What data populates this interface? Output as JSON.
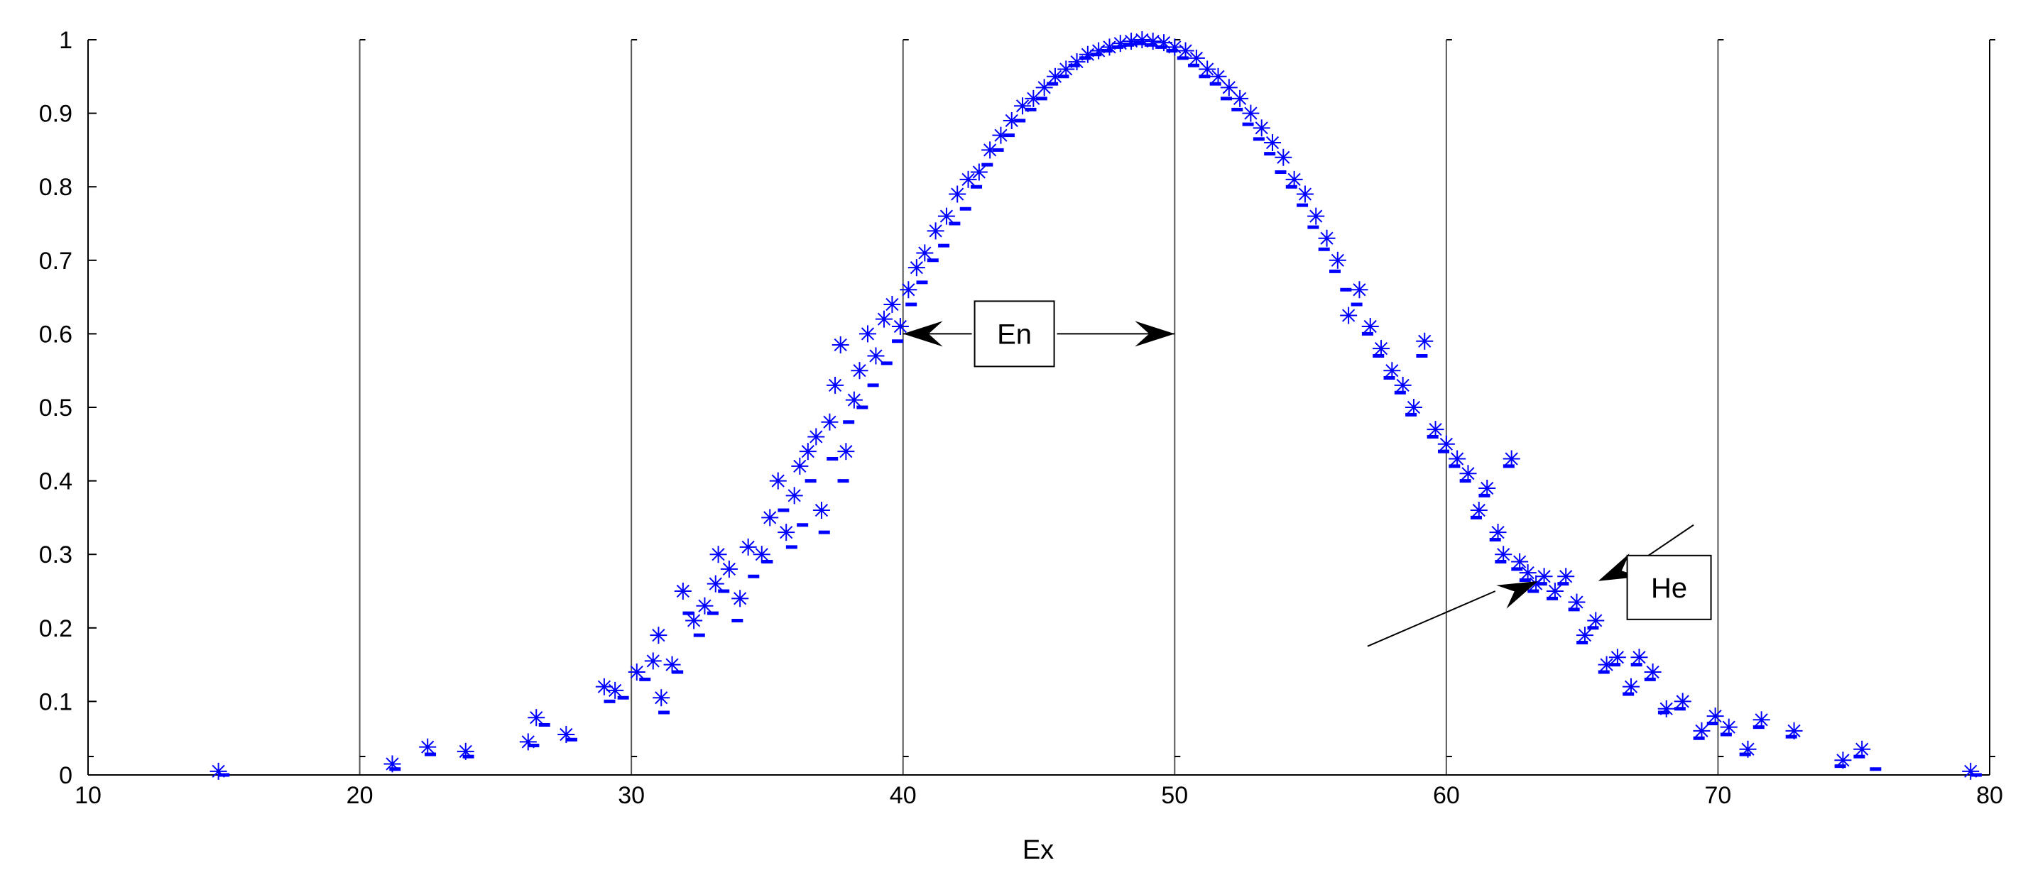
{
  "chart_data": {
    "type": "scatter",
    "title": "",
    "xlabel": "Ex",
    "ylabel": "",
    "xlim": [
      10,
      80
    ],
    "ylim": [
      0,
      1
    ],
    "x_ticks": [
      "10",
      "20",
      "30",
      "40",
      "50",
      "60",
      "70",
      "80"
    ],
    "y_ticks": [
      "0",
      "0.1",
      "0.2",
      "0.3",
      "0.4",
      "0.5",
      "0.6",
      "0.7",
      "0.8",
      "0.9",
      "1"
    ],
    "x_grid": true,
    "y_grid": false,
    "legend": "none",
    "marker_color": "#0000ff",
    "series": [
      {
        "marker": "asterisk",
        "points": [
          [
            14.8,
            0.005
          ],
          [
            21.2,
            0.015
          ],
          [
            22.5,
            0.038
          ],
          [
            23.9,
            0.032
          ],
          [
            26.2,
            0.045
          ],
          [
            26.5,
            0.078
          ],
          [
            27.6,
            0.055
          ],
          [
            29.0,
            0.12
          ],
          [
            29.4,
            0.115
          ],
          [
            30.2,
            0.14
          ],
          [
            30.8,
            0.155
          ],
          [
            31.0,
            0.19
          ],
          [
            31.1,
            0.105
          ],
          [
            31.5,
            0.15
          ],
          [
            31.9,
            0.25
          ],
          [
            32.3,
            0.21
          ],
          [
            32.7,
            0.23
          ],
          [
            33.1,
            0.26
          ],
          [
            33.2,
            0.3
          ],
          [
            33.6,
            0.28
          ],
          [
            34.0,
            0.24
          ],
          [
            34.3,
            0.31
          ],
          [
            34.8,
            0.3
          ],
          [
            35.1,
            0.35
          ],
          [
            35.4,
            0.4
          ],
          [
            35.7,
            0.33
          ],
          [
            36.0,
            0.38
          ],
          [
            36.2,
            0.42
          ],
          [
            36.5,
            0.44
          ],
          [
            36.8,
            0.46
          ],
          [
            37.0,
            0.36
          ],
          [
            37.3,
            0.48
          ],
          [
            37.5,
            0.53
          ],
          [
            37.7,
            0.585
          ],
          [
            37.9,
            0.44
          ],
          [
            38.2,
            0.51
          ],
          [
            38.4,
            0.55
          ],
          [
            38.7,
            0.6
          ],
          [
            39.0,
            0.57
          ],
          [
            39.3,
            0.62
          ],
          [
            39.6,
            0.64
          ],
          [
            39.9,
            0.61
          ],
          [
            40.2,
            0.66
          ],
          [
            40.5,
            0.69
          ],
          [
            40.8,
            0.71
          ],
          [
            41.2,
            0.74
          ],
          [
            41.6,
            0.76
          ],
          [
            42.0,
            0.79
          ],
          [
            42.4,
            0.81
          ],
          [
            42.8,
            0.82
          ],
          [
            43.2,
            0.85
          ],
          [
            43.6,
            0.87
          ],
          [
            44.0,
            0.89
          ],
          [
            44.4,
            0.91
          ],
          [
            44.8,
            0.92
          ],
          [
            45.2,
            0.935
          ],
          [
            45.6,
            0.95
          ],
          [
            46.0,
            0.96
          ],
          [
            46.4,
            0.97
          ],
          [
            46.8,
            0.98
          ],
          [
            47.2,
            0.985
          ],
          [
            47.6,
            0.99
          ],
          [
            48.0,
            0.995
          ],
          [
            48.4,
            0.998
          ],
          [
            48.8,
            1.0
          ],
          [
            49.2,
            0.998
          ],
          [
            49.6,
            0.996
          ],
          [
            50.0,
            0.99
          ],
          [
            50.4,
            0.985
          ],
          [
            50.8,
            0.975
          ],
          [
            51.2,
            0.96
          ],
          [
            51.6,
            0.95
          ],
          [
            52.0,
            0.935
          ],
          [
            52.4,
            0.92
          ],
          [
            52.8,
            0.9
          ],
          [
            53.2,
            0.88
          ],
          [
            53.6,
            0.86
          ],
          [
            54.0,
            0.84
          ],
          [
            54.4,
            0.81
          ],
          [
            54.8,
            0.79
          ],
          [
            55.2,
            0.76
          ],
          [
            55.6,
            0.73
          ],
          [
            56.0,
            0.7
          ],
          [
            56.4,
            0.625
          ],
          [
            56.8,
            0.66
          ],
          [
            57.2,
            0.61
          ],
          [
            57.6,
            0.58
          ],
          [
            58.0,
            0.55
          ],
          [
            58.4,
            0.53
          ],
          [
            58.8,
            0.5
          ],
          [
            59.2,
            0.59
          ],
          [
            59.6,
            0.47
          ],
          [
            60.0,
            0.45
          ],
          [
            60.4,
            0.43
          ],
          [
            60.8,
            0.41
          ],
          [
            61.2,
            0.36
          ],
          [
            61.5,
            0.39
          ],
          [
            61.9,
            0.33
          ],
          [
            62.1,
            0.3
          ],
          [
            62.4,
            0.43
          ],
          [
            62.7,
            0.29
          ],
          [
            63.0,
            0.275
          ],
          [
            63.3,
            0.26
          ],
          [
            63.6,
            0.27
          ],
          [
            64.0,
            0.25
          ],
          [
            64.4,
            0.27
          ],
          [
            64.8,
            0.235
          ],
          [
            65.1,
            0.19
          ],
          [
            65.5,
            0.21
          ],
          [
            65.9,
            0.15
          ],
          [
            66.3,
            0.16
          ],
          [
            66.8,
            0.12
          ],
          [
            67.1,
            0.16
          ],
          [
            67.6,
            0.14
          ],
          [
            68.1,
            0.09
          ],
          [
            68.7,
            0.1
          ],
          [
            69.4,
            0.06
          ],
          [
            69.9,
            0.08
          ],
          [
            70.4,
            0.065
          ],
          [
            71.1,
            0.035
          ],
          [
            71.6,
            0.075
          ],
          [
            72.8,
            0.06
          ],
          [
            74.6,
            0.02
          ],
          [
            75.3,
            0.035
          ],
          [
            79.3,
            0.005
          ]
        ]
      },
      {
        "marker": "dash",
        "points": [
          [
            15.0,
            0.0
          ],
          [
            21.3,
            0.008
          ],
          [
            22.6,
            0.028
          ],
          [
            24.0,
            0.025
          ],
          [
            26.4,
            0.04
          ],
          [
            26.8,
            0.068
          ],
          [
            27.8,
            0.048
          ],
          [
            29.2,
            0.1
          ],
          [
            29.7,
            0.105
          ],
          [
            30.5,
            0.13
          ],
          [
            31.2,
            0.085
          ],
          [
            31.7,
            0.14
          ],
          [
            32.1,
            0.22
          ],
          [
            32.5,
            0.19
          ],
          [
            33.0,
            0.22
          ],
          [
            33.4,
            0.25
          ],
          [
            33.9,
            0.21
          ],
          [
            34.5,
            0.27
          ],
          [
            35.0,
            0.29
          ],
          [
            35.6,
            0.36
          ],
          [
            35.9,
            0.31
          ],
          [
            36.3,
            0.34
          ],
          [
            36.6,
            0.4
          ],
          [
            37.1,
            0.33
          ],
          [
            37.4,
            0.43
          ],
          [
            37.8,
            0.4
          ],
          [
            38.0,
            0.48
          ],
          [
            38.5,
            0.5
          ],
          [
            38.9,
            0.53
          ],
          [
            39.4,
            0.56
          ],
          [
            39.8,
            0.59
          ],
          [
            40.3,
            0.64
          ],
          [
            40.7,
            0.67
          ],
          [
            41.1,
            0.7
          ],
          [
            41.5,
            0.72
          ],
          [
            41.9,
            0.75
          ],
          [
            42.3,
            0.77
          ],
          [
            42.7,
            0.8
          ],
          [
            43.1,
            0.83
          ],
          [
            43.5,
            0.85
          ],
          [
            43.9,
            0.87
          ],
          [
            44.3,
            0.89
          ],
          [
            44.7,
            0.905
          ],
          [
            45.1,
            0.92
          ],
          [
            45.5,
            0.94
          ],
          [
            45.9,
            0.95
          ],
          [
            46.3,
            0.965
          ],
          [
            46.7,
            0.975
          ],
          [
            47.1,
            0.98
          ],
          [
            47.5,
            0.985
          ],
          [
            47.9,
            0.99
          ],
          [
            48.3,
            0.993
          ],
          [
            48.7,
            0.995
          ],
          [
            49.1,
            0.993
          ],
          [
            49.5,
            0.99
          ],
          [
            49.9,
            0.985
          ],
          [
            50.3,
            0.975
          ],
          [
            50.7,
            0.965
          ],
          [
            51.1,
            0.95
          ],
          [
            51.5,
            0.94
          ],
          [
            51.9,
            0.92
          ],
          [
            52.3,
            0.905
          ],
          [
            52.7,
            0.885
          ],
          [
            53.1,
            0.865
          ],
          [
            53.5,
            0.845
          ],
          [
            53.9,
            0.82
          ],
          [
            54.3,
            0.8
          ],
          [
            54.7,
            0.775
          ],
          [
            55.1,
            0.745
          ],
          [
            55.5,
            0.715
          ],
          [
            55.9,
            0.685
          ],
          [
            56.3,
            0.66
          ],
          [
            56.7,
            0.64
          ],
          [
            57.1,
            0.6
          ],
          [
            57.5,
            0.57
          ],
          [
            57.9,
            0.54
          ],
          [
            58.3,
            0.52
          ],
          [
            58.7,
            0.49
          ],
          [
            59.1,
            0.57
          ],
          [
            59.5,
            0.46
          ],
          [
            59.9,
            0.44
          ],
          [
            60.3,
            0.42
          ],
          [
            60.7,
            0.4
          ],
          [
            61.1,
            0.35
          ],
          [
            61.4,
            0.38
          ],
          [
            61.8,
            0.32
          ],
          [
            62.0,
            0.29
          ],
          [
            62.3,
            0.42
          ],
          [
            62.6,
            0.28
          ],
          [
            62.9,
            0.265
          ],
          [
            63.2,
            0.25
          ],
          [
            63.5,
            0.26
          ],
          [
            63.9,
            0.24
          ],
          [
            64.3,
            0.26
          ],
          [
            64.7,
            0.225
          ],
          [
            65.0,
            0.18
          ],
          [
            65.4,
            0.2
          ],
          [
            65.8,
            0.14
          ],
          [
            66.2,
            0.15
          ],
          [
            66.7,
            0.11
          ],
          [
            67.0,
            0.15
          ],
          [
            67.5,
            0.13
          ],
          [
            68.0,
            0.085
          ],
          [
            68.6,
            0.09
          ],
          [
            69.3,
            0.05
          ],
          [
            69.8,
            0.07
          ],
          [
            70.3,
            0.055
          ],
          [
            71.0,
            0.028
          ],
          [
            71.5,
            0.065
          ],
          [
            72.7,
            0.052
          ],
          [
            74.5,
            0.012
          ],
          [
            75.2,
            0.025
          ],
          [
            75.8,
            0.008
          ],
          [
            79.5,
            0.0
          ]
        ]
      }
    ],
    "annotations": [
      {
        "text": "En",
        "x": 44.1,
        "y": 0.6
      },
      {
        "text": "He",
        "x": 68.2,
        "y": 0.255
      }
    ]
  }
}
